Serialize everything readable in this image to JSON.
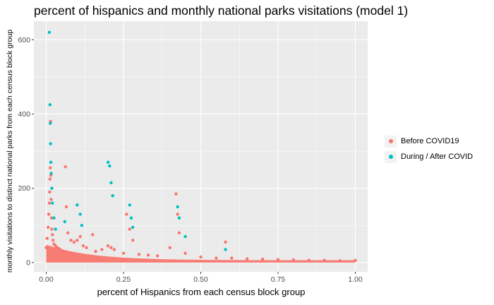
{
  "chart_data": {
    "type": "scatter",
    "title": "percent of hispanics and monthly national parks visitations (model 1)",
    "xlabel": "percent of Hispanics from each census block group",
    "ylabel": "monthly visitations to distinct national parks from each census block group",
    "xlim": [
      -0.04,
      1.04
    ],
    "ylim": [
      -25,
      650
    ],
    "x_ticks": [
      0.0,
      0.25,
      0.5,
      0.75,
      1.0
    ],
    "x_tick_labels": [
      "0.00",
      "0.25",
      "0.50",
      "0.75",
      "1.00"
    ],
    "y_ticks": [
      0,
      200,
      400,
      600
    ],
    "y_tick_labels": [
      "0",
      "200",
      "400",
      "600"
    ],
    "grid": true,
    "legend_position": "right",
    "series": [
      {
        "name": "Before COVID19",
        "color": "#F8766D",
        "x": [
          0.0,
          0.003,
          0.006,
          0.008,
          0.01,
          0.011,
          0.012,
          0.013,
          0.014,
          0.015,
          0.016,
          0.017,
          0.018,
          0.02,
          0.022,
          0.025,
          0.03,
          0.035,
          0.04,
          0.045,
          0.05,
          0.055,
          0.06,
          0.062,
          0.065,
          0.07,
          0.08,
          0.09,
          0.1,
          0.11,
          0.12,
          0.13,
          0.15,
          0.16,
          0.18,
          0.2,
          0.21,
          0.22,
          0.25,
          0.26,
          0.27,
          0.28,
          0.3,
          0.33,
          0.36,
          0.4,
          0.42,
          0.425,
          0.43,
          0.45,
          0.5,
          0.55,
          0.58,
          0.6,
          0.65,
          0.7,
          0.75,
          0.8,
          0.85,
          0.9,
          0.95,
          1.0
        ],
        "y": [
          40,
          65,
          95,
          130,
          160,
          190,
          225,
          255,
          380,
          235,
          170,
          120,
          90,
          75,
          60,
          50,
          45,
          40,
          38,
          35,
          32,
          30,
          28,
          258,
          150,
          80,
          60,
          55,
          60,
          70,
          45,
          40,
          75,
          30,
          35,
          45,
          40,
          35,
          25,
          130,
          90,
          60,
          22,
          20,
          18,
          40,
          185,
          130,
          80,
          25,
          15,
          12,
          55,
          12,
          10,
          9,
          8,
          7,
          6,
          6,
          5,
          6
        ]
      },
      {
        "name": "During / After COVID",
        "color": "#00BFC4",
        "x": [
          0.01,
          0.012,
          0.013,
          0.014,
          0.015,
          0.016,
          0.018,
          0.02,
          0.025,
          0.03,
          0.06,
          0.1,
          0.11,
          0.115,
          0.2,
          0.205,
          0.21,
          0.215,
          0.27,
          0.275,
          0.28,
          0.425,
          0.43,
          0.45,
          0.58
        ],
        "y": [
          620,
          425,
          375,
          320,
          270,
          240,
          200,
          160,
          120,
          90,
          110,
          155,
          130,
          100,
          270,
          260,
          215,
          180,
          155,
          120,
          95,
          150,
          120,
          70,
          35
        ]
      }
    ]
  }
}
